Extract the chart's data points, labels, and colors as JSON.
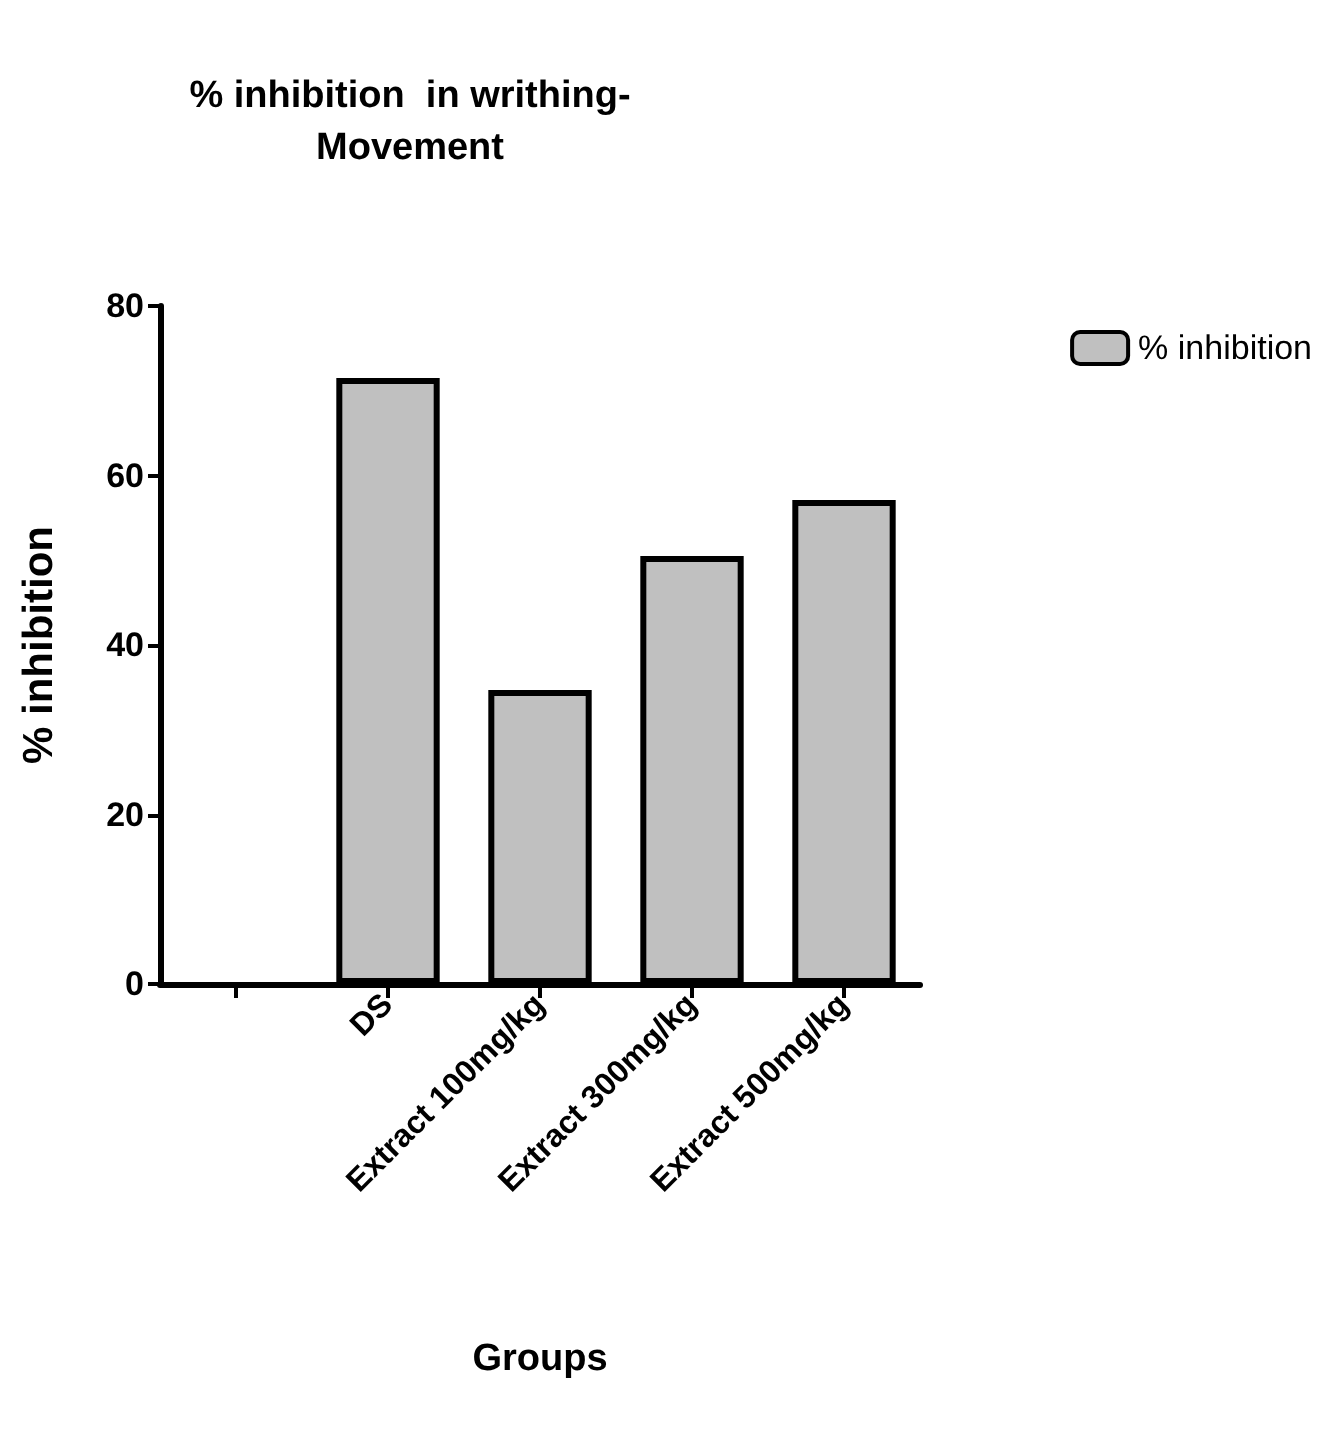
{
  "chart_data": {
    "type": "bar",
    "title": "% inhibition  in writhing-\nMovement",
    "xlabel": "Groups",
    "ylabel": "% inhibition",
    "categories": [
      null,
      "DS",
      "Extract 100mg/kg",
      "Extract 300mg/kg",
      "Extract 500mg/kg"
    ],
    "series": [
      {
        "name": "% inhibition",
        "color": "#c0c0c0",
        "values": [
          null,
          71.5,
          34.7,
          50.5,
          57.1
        ]
      }
    ],
    "ylim": [
      0,
      80
    ],
    "yticks": [
      0,
      20,
      40,
      60,
      80
    ],
    "grid": false,
    "legend": "top right"
  }
}
